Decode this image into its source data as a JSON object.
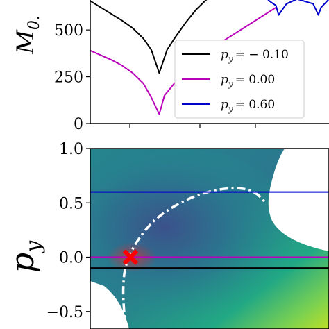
{
  "chart_data": [
    {
      "type": "line",
      "ylabel": "M_{0.",
      "ylim": [
        0,
        660
      ],
      "yticks": [
        0,
        250,
        500
      ],
      "x": [
        -3.0,
        -2.4,
        -2.0,
        -1.8,
        -1.7,
        -1.6,
        -1.5,
        -1.4,
        -1.2,
        -0.6,
        0.0,
        0.5,
        1.0
      ],
      "series": [
        {
          "name": "p_y = -0.10",
          "color": "#000000",
          "x": [
            -3.0,
            -2.8,
            -2.6,
            -2.4,
            -2.2,
            -2.0,
            -1.85,
            -1.7,
            -1.55,
            -1.4,
            -1.2,
            -1.0,
            -0.8
          ],
          "values": [
            655,
            620,
            585,
            550,
            510,
            455,
            395,
            270,
            395,
            460,
            540,
            610,
            665
          ]
        },
        {
          "name": "p_y = 0.00",
          "color": "#bb00bb",
          "x": [
            -3.0,
            -2.8,
            -2.6,
            -2.4,
            -2.2,
            -2.0,
            -1.85,
            -1.7,
            -1.6,
            -1.4,
            -1.2,
            -1.0,
            -0.5,
            0.0,
            0.5
          ],
          "values": [
            390,
            365,
            340,
            310,
            270,
            215,
            140,
            50,
            150,
            220,
            280,
            335,
            440,
            530,
            620
          ]
        },
        {
          "name": "p_y = 0.60",
          "color": "#0000cc",
          "x": [
            0.35,
            0.5,
            0.55,
            0.7,
            0.9,
            1.2,
            1.3,
            1.35,
            1.5
          ],
          "values": [
            660,
            630,
            580,
            640,
            665,
            640,
            580,
            620,
            665
          ]
        }
      ],
      "legend": [
        "p_y = -0.10",
        "p_y = 0.00",
        "p_y = 0.60"
      ],
      "legend_text": [
        {
          "base": "p",
          "sub": "y",
          "rest": "= − 0.10"
        },
        {
          "base": "p",
          "sub": "y",
          "rest": "= 0.00"
        },
        {
          "base": "p",
          "sub": "y",
          "rest": "= 0.60"
        }
      ],
      "legend_placement": "bottom-right",
      "grid": false
    },
    {
      "type": "heatmap",
      "ylabel": "p_y",
      "ylabel_text": {
        "base": "p",
        "sub": "y"
      },
      "ylim": [
        -0.65,
        1.0
      ],
      "yticks": [
        1.0,
        0.5,
        0.0,
        -0.5
      ],
      "ytick_labels": [
        "1.0",
        "0.5",
        "0.0",
        "−0.5"
      ],
      "colormap": "viridis",
      "hlines": [
        {
          "y": 0.6,
          "color": "#0000cc",
          "series": "p_y = 0.60"
        },
        {
          "y": 0.0,
          "color": "#bb00bb",
          "series": "p_y = 0.00"
        },
        {
          "y": -0.1,
          "color": "#000000",
          "series": "p_y = -0.10"
        }
      ],
      "contour": {
        "style": "dash-dot",
        "color": "#ffffff"
      },
      "marker": {
        "y": 0.0,
        "symbol": "X",
        "color": "#ff0000"
      },
      "grid": false
    }
  ]
}
